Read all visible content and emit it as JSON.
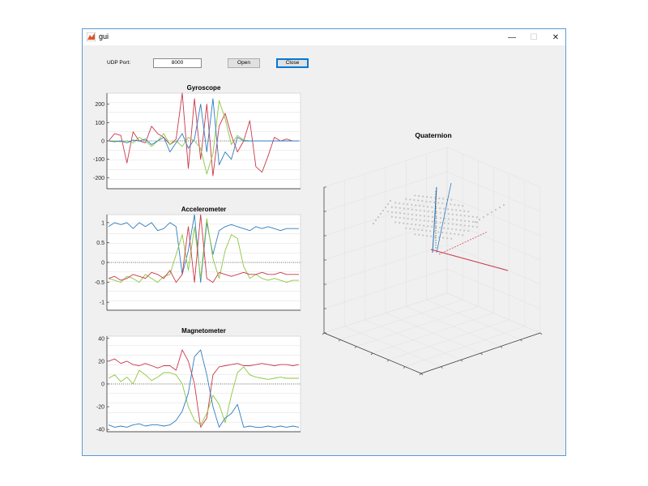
{
  "window": {
    "title": "gui",
    "minimize_glyph": "—",
    "maximize_glyph": "☐",
    "close_glyph": "✕"
  },
  "controls": {
    "port_label": "UDP Port:",
    "port_value": "8000",
    "open_label": "Open",
    "close_label": "Close"
  },
  "colors": {
    "red": "#c9384a",
    "green": "#8cc63e",
    "blue": "#2f7dc0",
    "grid": "#d6d6d6"
  },
  "plots": {
    "gyroscope": {
      "title": "Gyroscope",
      "ylim": [
        -260,
        260
      ],
      "ticks": [
        "200",
        "100",
        "0",
        "-100",
        "-200"
      ]
    },
    "accelerometer": {
      "title": "Accelerometer",
      "ylim": [
        -1.2,
        1.2
      ],
      "ticks": [
        "1",
        "0.5",
        "0",
        "-0.5",
        "-1"
      ]
    },
    "magnetometer": {
      "title": "Magnetometer",
      "ylim": [
        -42,
        42
      ],
      "ticks": [
        "40",
        "20",
        "0",
        "-20",
        "-40"
      ]
    },
    "quaternion": {
      "title": "Quaternion"
    }
  },
  "chart_data": [
    {
      "type": "line",
      "title": "Gyroscope",
      "ylim": [
        -260,
        260
      ],
      "series": [
        {
          "color": "red",
          "values": [
            0,
            40,
            30,
            -120,
            50,
            0,
            -10,
            80,
            40,
            20,
            -20,
            10,
            260,
            -150,
            230,
            -100,
            200,
            -190,
            80,
            150,
            30,
            -60,
            0,
            110,
            -140,
            -170,
            -80,
            20,
            0,
            10,
            0,
            0
          ]
        },
        {
          "color": "green",
          "values": [
            0,
            0,
            -5,
            0,
            -10,
            20,
            0,
            -30,
            0,
            40,
            -20,
            0,
            -30,
            20,
            0,
            -40,
            -180,
            -70,
            220,
            120,
            -20,
            30,
            5,
            0,
            0,
            0,
            0,
            0,
            0,
            0,
            0,
            0
          ]
        },
        {
          "color": "blue",
          "values": [
            0,
            -5,
            0,
            -10,
            5,
            0,
            10,
            -20,
            0,
            20,
            -60,
            -10,
            40,
            -40,
            10,
            200,
            -60,
            230,
            -130,
            -60,
            -100,
            20,
            0,
            0,
            0,
            0,
            0,
            0,
            0,
            0,
            0,
            0
          ]
        }
      ]
    },
    {
      "type": "line",
      "title": "Accelerometer",
      "ylim": [
        -1.2,
        1.2
      ],
      "series": [
        {
          "color": "blue",
          "values": [
            0.9,
            1.0,
            0.95,
            1.0,
            0.85,
            1.0,
            0.9,
            1.0,
            0.8,
            0.85,
            1.0,
            0.9,
            -0.3,
            0.3,
            1.2,
            -0.5,
            1.0,
            0.2,
            0.8,
            0.9,
            0.95,
            0.9,
            0.85,
            0.8,
            0.9,
            0.85,
            0.9,
            0.85,
            0.8,
            0.85,
            0.85,
            0.85
          ]
        },
        {
          "color": "green",
          "values": [
            -0.4,
            -0.45,
            -0.5,
            -0.35,
            -0.4,
            -0.5,
            -0.3,
            -0.4,
            -0.5,
            -0.35,
            -0.3,
            0.2,
            0.7,
            -0.2,
            0.9,
            -0.4,
            1.1,
            0.1,
            -0.4,
            0.3,
            0.7,
            0.6,
            -0.1,
            -0.4,
            -0.3,
            -0.4,
            -0.45,
            -0.4,
            -0.45,
            -0.5,
            -0.45,
            -0.45
          ]
        },
        {
          "color": "red",
          "values": [
            -0.4,
            -0.35,
            -0.45,
            -0.4,
            -0.3,
            -0.35,
            -0.4,
            -0.25,
            -0.3,
            -0.4,
            -0.2,
            -0.5,
            -0.3,
            0.9,
            -0.5,
            1.2,
            -0.4,
            -0.5,
            -0.25,
            -0.3,
            -0.35,
            -0.3,
            -0.25,
            -0.3,
            -0.3,
            -0.25,
            -0.3,
            -0.3,
            -0.25,
            -0.3,
            -0.3,
            -0.3
          ]
        }
      ]
    },
    {
      "type": "line",
      "title": "Magnetometer",
      "ylim": [
        -42,
        42
      ],
      "series": [
        {
          "color": "red",
          "values": [
            20,
            22,
            18,
            20,
            17,
            16,
            18,
            16,
            14,
            16,
            16,
            12,
            30,
            20,
            0,
            -38,
            -30,
            8,
            15,
            16,
            17,
            18,
            16,
            16,
            17,
            18,
            17,
            16,
            17,
            17,
            16,
            17
          ]
        },
        {
          "color": "green",
          "values": [
            5,
            8,
            2,
            6,
            0,
            12,
            8,
            3,
            6,
            10,
            10,
            8,
            0,
            -20,
            -32,
            -36,
            -26,
            -10,
            -18,
            -34,
            -10,
            10,
            15,
            8,
            6,
            5,
            4,
            5,
            6,
            5,
            5,
            5
          ]
        },
        {
          "color": "blue",
          "values": [
            -36,
            -38,
            -37,
            -38,
            -36,
            -35,
            -37,
            -36,
            -36,
            -37,
            -36,
            -32,
            -24,
            -8,
            24,
            30,
            8,
            -20,
            -38,
            -30,
            -26,
            -18,
            -38,
            -37,
            -38,
            -38,
            -37,
            -38,
            -37,
            -38,
            -37,
            -38
          ]
        }
      ]
    }
  ]
}
